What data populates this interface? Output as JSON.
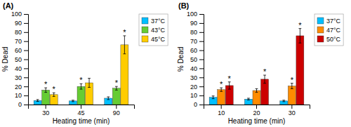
{
  "chart_data": [
    {
      "type": "bar",
      "title": "(A)",
      "xlabel": "Heating time (min)",
      "ylabel": "% Dead",
      "categories": [
        30,
        45,
        90
      ],
      "series": [
        {
          "name": "37°C",
          "color": "#00BFFF",
          "values": [
            4.5,
            4.0,
            7.0
          ],
          "errors": [
            1.0,
            0.8,
            1.5
          ]
        },
        {
          "name": "43°C",
          "color": "#66CC33",
          "values": [
            16.0,
            20.0,
            18.0
          ],
          "errors": [
            2.5,
            3.0,
            2.0
          ],
          "annotations": [
            "*",
            "*",
            "*"
          ]
        },
        {
          "name": "45°C",
          "color": "#FFCC00",
          "values": [
            11.0,
            24.0,
            66.0
          ],
          "errors": [
            2.0,
            5.0,
            10.0
          ],
          "annotations": [
            "*",
            null,
            "*"
          ]
        }
      ],
      "ylim": [
        0,
        100
      ],
      "yticks": [
        0,
        10,
        20,
        30,
        40,
        50,
        60,
        70,
        80,
        90,
        100
      ],
      "grid": false,
      "legend": "right"
    },
    {
      "type": "bar",
      "title": "(B)",
      "xlabel": "Heating time (min)",
      "ylabel": "% Dead",
      "categories": [
        10,
        20,
        30
      ],
      "series": [
        {
          "name": "37°C",
          "color": "#00BFFF",
          "values": [
            8.0,
            6.0,
            4.0
          ],
          "errors": [
            1.5,
            1.0,
            0.8
          ]
        },
        {
          "name": "47°C",
          "color": "#FF8C00",
          "values": [
            16.5,
            15.5,
            20.5
          ],
          "errors": [
            2.0,
            2.0,
            3.0
          ],
          "annotations": [
            "*",
            null,
            "*"
          ]
        },
        {
          "name": "50°C",
          "color": "#CC0000",
          "values": [
            21.0,
            28.0,
            76.0
          ],
          "errors": [
            4.0,
            4.5,
            8.0
          ],
          "annotations": [
            "*",
            "*",
            "*"
          ]
        }
      ],
      "ylim": [
        0,
        100
      ],
      "yticks": [
        0,
        10,
        20,
        30,
        40,
        50,
        60,
        70,
        80,
        90,
        100
      ],
      "grid": false,
      "legend": "right"
    }
  ]
}
